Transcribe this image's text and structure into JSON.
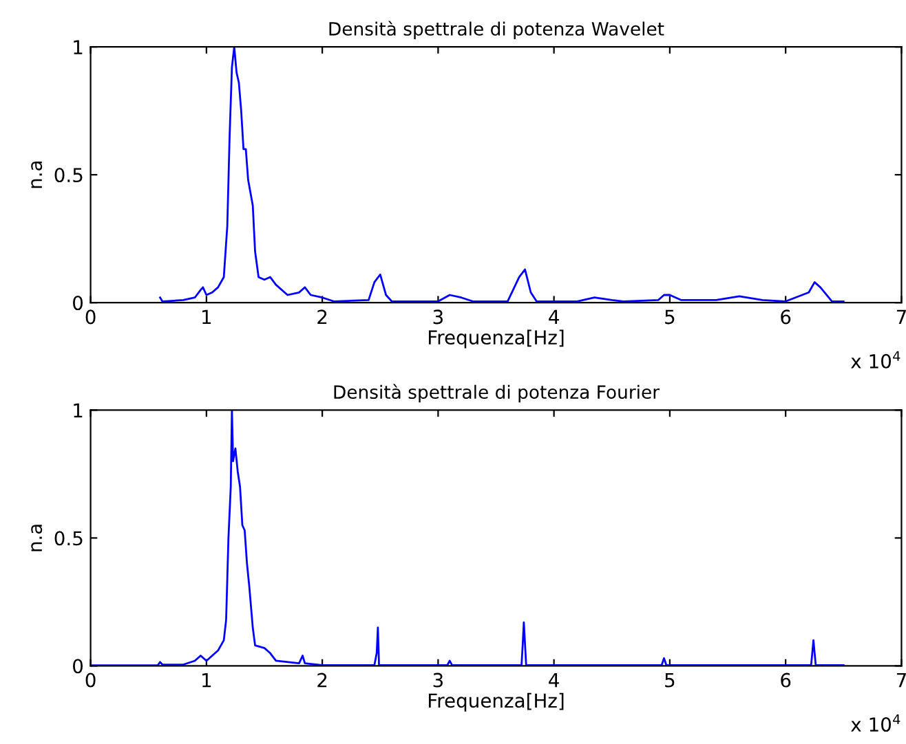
{
  "chart_data": [
    {
      "type": "line",
      "title": "Densità spettrale di potenza Wavelet",
      "xlabel": "Frequenza[Hz]",
      "ylabel": "n.a",
      "annotations": [
        "x 10$^{4}$"
      ],
      "xlim": [
        0,
        7
      ],
      "xticks": [
        0,
        1,
        2,
        3,
        4,
        5,
        6,
        7
      ],
      "ylim": [
        0,
        1
      ],
      "yticks": [
        0,
        0.5,
        1
      ],
      "grid": false,
      "legend": false,
      "series": [
        {
          "color": "#0000ff",
          "x": [
            0.6,
            0.62,
            0.8,
            0.9,
            0.95,
            0.97,
            1.0,
            1.05,
            1.1,
            1.15,
            1.18,
            1.2,
            1.22,
            1.24,
            1.26,
            1.28,
            1.3,
            1.32,
            1.34,
            1.36,
            1.4,
            1.42,
            1.45,
            1.5,
            1.55,
            1.6,
            1.7,
            1.8,
            1.85,
            1.9,
            2.0,
            2.1,
            2.4,
            2.45,
            2.5,
            2.55,
            2.6,
            3.0,
            3.1,
            3.2,
            3.3,
            3.6,
            3.7,
            3.75,
            3.8,
            3.85,
            4.2,
            4.35,
            4.5,
            4.6,
            4.9,
            4.95,
            5.0,
            5.1,
            5.4,
            5.6,
            5.8,
            6.0,
            6.2,
            6.25,
            6.3,
            6.4,
            6.5
          ],
          "values": [
            0.02,
            0.005,
            0.01,
            0.02,
            0.05,
            0.06,
            0.03,
            0.04,
            0.06,
            0.1,
            0.3,
            0.65,
            0.92,
            1.0,
            0.9,
            0.86,
            0.75,
            0.6,
            0.6,
            0.48,
            0.38,
            0.2,
            0.1,
            0.09,
            0.1,
            0.07,
            0.03,
            0.04,
            0.06,
            0.03,
            0.02,
            0.005,
            0.01,
            0.08,
            0.11,
            0.03,
            0.005,
            0.005,
            0.03,
            0.02,
            0.005,
            0.005,
            0.1,
            0.13,
            0.04,
            0.005,
            0.005,
            0.02,
            0.01,
            0.005,
            0.01,
            0.03,
            0.03,
            0.01,
            0.01,
            0.025,
            0.01,
            0.005,
            0.04,
            0.08,
            0.06,
            0.005,
            0.005
          ]
        }
      ]
    },
    {
      "type": "line",
      "title": "Densità spettrale di potenza Fourier",
      "xlabel": "Frequenza[Hz]",
      "ylabel": "n.a",
      "annotations": [
        "x 10$^{4}$"
      ],
      "xlim": [
        0,
        7
      ],
      "xticks": [
        0,
        1,
        2,
        3,
        4,
        5,
        6,
        7
      ],
      "ylim": [
        0,
        1
      ],
      "yticks": [
        0,
        0.5,
        1
      ],
      "grid": false,
      "legend": false,
      "series": [
        {
          "color": "#0000ff",
          "x": [
            0,
            0.58,
            0.6,
            0.62,
            0.8,
            0.9,
            0.95,
            1.0,
            1.05,
            1.1,
            1.15,
            1.17,
            1.19,
            1.21,
            1.22,
            1.23,
            1.25,
            1.27,
            1.29,
            1.31,
            1.33,
            1.35,
            1.37,
            1.4,
            1.42,
            1.5,
            1.55,
            1.6,
            1.8,
            1.83,
            1.85,
            2.0,
            2.45,
            2.47,
            2.48,
            2.49,
            3.08,
            3.1,
            3.12,
            3.72,
            3.73,
            3.74,
            3.76,
            4.93,
            4.95,
            4.97,
            6.22,
            6.23,
            6.24,
            6.26,
            6.5
          ],
          "values": [
            0.002,
            0.002,
            0.015,
            0.005,
            0.005,
            0.02,
            0.04,
            0.02,
            0.04,
            0.06,
            0.1,
            0.18,
            0.5,
            0.7,
            1.0,
            0.8,
            0.85,
            0.76,
            0.7,
            0.55,
            0.53,
            0.4,
            0.31,
            0.15,
            0.08,
            0.07,
            0.05,
            0.02,
            0.01,
            0.04,
            0.01,
            0.003,
            0.003,
            0.05,
            0.15,
            0.003,
            0.003,
            0.02,
            0.003,
            0.003,
            0.08,
            0.17,
            0.003,
            0.003,
            0.03,
            0.003,
            0.003,
            0.05,
            0.1,
            0.003,
            0.003
          ]
        }
      ]
    }
  ]
}
